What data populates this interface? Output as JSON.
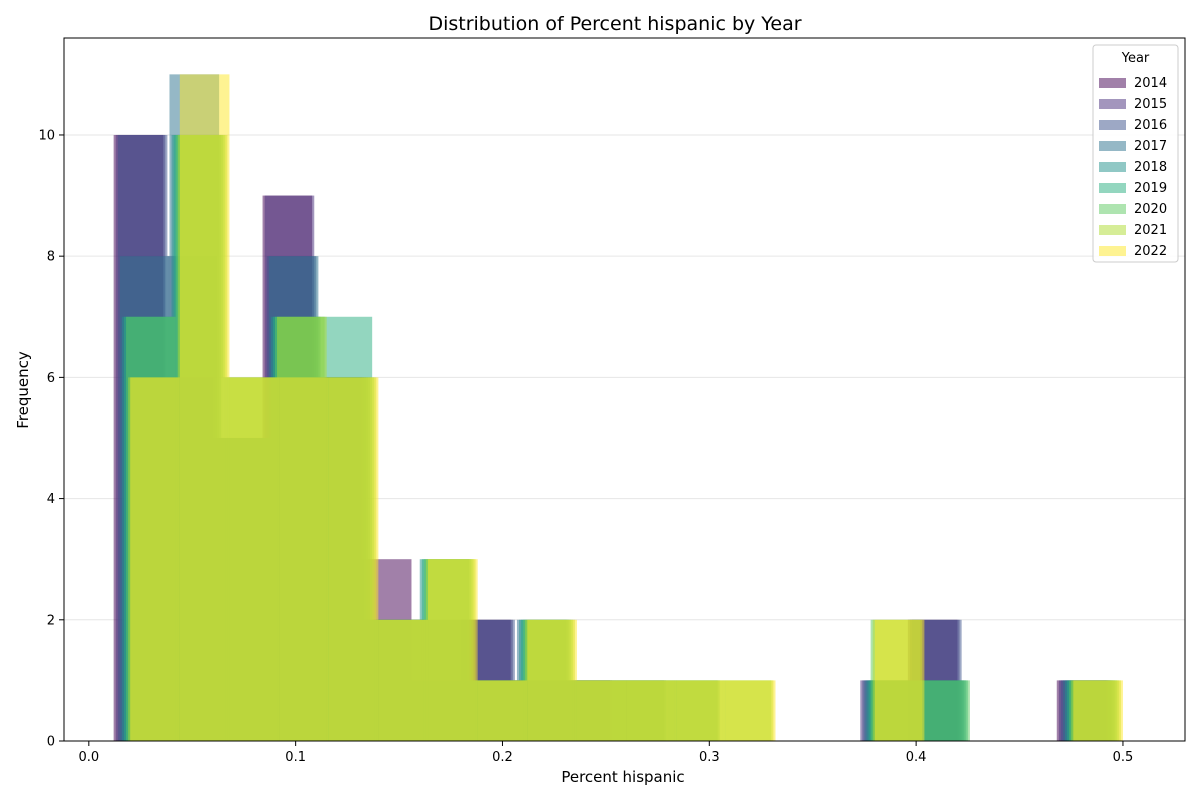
{
  "chart_data": {
    "type": "bar",
    "title": "Distribution of Percent hispanic by Year",
    "xlabel": "Percent hispanic",
    "ylabel": "Frequency",
    "xlim": [
      -0.012,
      0.53
    ],
    "ylim": [
      0,
      11.6
    ],
    "x_ticks": [
      0.0,
      0.1,
      0.2,
      0.3,
      0.4,
      0.5
    ],
    "x_tick_labels": [
      "0.0",
      "0.1",
      "0.2",
      "0.3",
      "0.4",
      "0.5"
    ],
    "y_ticks": [
      0,
      2,
      4,
      6,
      8,
      10
    ],
    "y_tick_labels": [
      "0",
      "2",
      "4",
      "6",
      "8",
      "10"
    ],
    "grid": "y",
    "bar_alpha": 0.5,
    "legend": {
      "title": "Year",
      "position": "top-right"
    },
    "series": [
      {
        "name": "2014",
        "color": "#440154",
        "bins": [
          [
            0.012,
            0.036,
            10
          ],
          [
            0.036,
            0.06,
            6
          ],
          [
            0.06,
            0.084,
            5
          ],
          [
            0.084,
            0.108,
            9
          ],
          [
            0.108,
            0.132,
            6
          ],
          [
            0.132,
            0.156,
            3
          ],
          [
            0.156,
            0.18,
            1
          ],
          [
            0.18,
            0.204,
            2
          ],
          [
            0.204,
            0.228,
            1
          ],
          [
            0.228,
            0.252,
            1
          ],
          [
            0.252,
            0.276,
            0
          ],
          [
            0.276,
            0.3,
            0
          ],
          [
            0.3,
            0.324,
            0
          ],
          [
            0.324,
            0.348,
            0
          ],
          [
            0.348,
            0.372,
            0
          ],
          [
            0.372,
            0.396,
            0
          ],
          [
            0.396,
            0.42,
            2
          ],
          [
            0.42,
            0.444,
            0
          ],
          [
            0.444,
            0.468,
            0
          ],
          [
            0.468,
            0.492,
            1
          ]
        ]
      },
      {
        "name": "2015",
        "color": "#472d7b",
        "bins": [
          [
            0.013,
            0.037,
            10
          ],
          [
            0.037,
            0.061,
            6
          ],
          [
            0.061,
            0.085,
            5
          ],
          [
            0.085,
            0.109,
            9
          ],
          [
            0.109,
            0.133,
            6
          ],
          [
            0.133,
            0.157,
            2
          ],
          [
            0.157,
            0.181,
            2
          ],
          [
            0.181,
            0.205,
            2
          ],
          [
            0.205,
            0.229,
            1
          ],
          [
            0.229,
            0.253,
            1
          ],
          [
            0.253,
            0.277,
            0
          ],
          [
            0.277,
            0.301,
            0
          ],
          [
            0.301,
            0.325,
            0
          ],
          [
            0.325,
            0.349,
            0
          ],
          [
            0.349,
            0.373,
            0
          ],
          [
            0.373,
            0.397,
            1
          ],
          [
            0.397,
            0.421,
            2
          ],
          [
            0.421,
            0.445,
            0
          ],
          [
            0.445,
            0.469,
            0
          ],
          [
            0.469,
            0.493,
            1
          ]
        ]
      },
      {
        "name": "2016",
        "color": "#3b528b",
        "bins": [
          [
            0.014,
            0.038,
            10
          ],
          [
            0.038,
            0.062,
            8
          ],
          [
            0.062,
            0.086,
            5
          ],
          [
            0.086,
            0.11,
            8
          ],
          [
            0.11,
            0.134,
            6
          ],
          [
            0.134,
            0.158,
            2
          ],
          [
            0.158,
            0.182,
            2
          ],
          [
            0.182,
            0.206,
            2
          ],
          [
            0.206,
            0.23,
            1
          ],
          [
            0.23,
            0.254,
            1
          ],
          [
            0.254,
            0.278,
            1
          ],
          [
            0.278,
            0.302,
            0
          ],
          [
            0.302,
            0.326,
            0
          ],
          [
            0.326,
            0.35,
            0
          ],
          [
            0.35,
            0.374,
            0
          ],
          [
            0.374,
            0.398,
            1
          ],
          [
            0.398,
            0.422,
            2
          ],
          [
            0.422,
            0.446,
            0
          ],
          [
            0.446,
            0.47,
            0
          ],
          [
            0.47,
            0.494,
            1
          ]
        ]
      },
      {
        "name": "2017",
        "color": "#2c728e",
        "bins": [
          [
            0.015,
            0.039,
            8
          ],
          [
            0.039,
            0.063,
            11
          ],
          [
            0.063,
            0.087,
            5
          ],
          [
            0.087,
            0.111,
            8
          ],
          [
            0.111,
            0.135,
            6
          ],
          [
            0.135,
            0.159,
            2
          ],
          [
            0.159,
            0.183,
            2
          ],
          [
            0.183,
            0.207,
            1
          ],
          [
            0.207,
            0.231,
            2
          ],
          [
            0.231,
            0.255,
            1
          ],
          [
            0.255,
            0.279,
            1
          ],
          [
            0.279,
            0.303,
            0
          ],
          [
            0.303,
            0.327,
            0
          ],
          [
            0.327,
            0.351,
            0
          ],
          [
            0.351,
            0.375,
            0
          ],
          [
            0.375,
            0.399,
            1
          ],
          [
            0.399,
            0.423,
            1
          ],
          [
            0.423,
            0.447,
            0
          ],
          [
            0.447,
            0.471,
            0
          ],
          [
            0.471,
            0.495,
            1
          ]
        ]
      },
      {
        "name": "2018",
        "color": "#21918c",
        "bins": [
          [
            0.016,
            0.04,
            7
          ],
          [
            0.04,
            0.064,
            10
          ],
          [
            0.064,
            0.088,
            5
          ],
          [
            0.088,
            0.112,
            7
          ],
          [
            0.112,
            0.136,
            6
          ],
          [
            0.136,
            0.16,
            2
          ],
          [
            0.16,
            0.184,
            3
          ],
          [
            0.184,
            0.208,
            1
          ],
          [
            0.208,
            0.232,
            2
          ],
          [
            0.232,
            0.256,
            1
          ],
          [
            0.256,
            0.28,
            1
          ],
          [
            0.28,
            0.304,
            1
          ],
          [
            0.304,
            0.328,
            0
          ],
          [
            0.328,
            0.352,
            0
          ],
          [
            0.352,
            0.376,
            0
          ],
          [
            0.376,
            0.4,
            1
          ],
          [
            0.4,
            0.424,
            1
          ],
          [
            0.424,
            0.448,
            0
          ],
          [
            0.448,
            0.472,
            0
          ],
          [
            0.472,
            0.496,
            1
          ]
        ]
      },
      {
        "name": "2019",
        "color": "#28ae80",
        "bins": [
          [
            0.017,
            0.041,
            7
          ],
          [
            0.041,
            0.065,
            10
          ],
          [
            0.065,
            0.089,
            6
          ],
          [
            0.089,
            0.113,
            7
          ],
          [
            0.113,
            0.137,
            7
          ],
          [
            0.137,
            0.161,
            2
          ],
          [
            0.161,
            0.185,
            3
          ],
          [
            0.185,
            0.209,
            1
          ],
          [
            0.209,
            0.233,
            2
          ],
          [
            0.233,
            0.257,
            1
          ],
          [
            0.257,
            0.281,
            1
          ],
          [
            0.281,
            0.305,
            1
          ],
          [
            0.305,
            0.329,
            0
          ],
          [
            0.329,
            0.353,
            0
          ],
          [
            0.353,
            0.377,
            0
          ],
          [
            0.377,
            0.401,
            1
          ],
          [
            0.401,
            0.425,
            1
          ],
          [
            0.425,
            0.449,
            0
          ],
          [
            0.449,
            0.473,
            0
          ],
          [
            0.473,
            0.497,
            1
          ]
        ]
      },
      {
        "name": "2020",
        "color": "#5ec962",
        "bins": [
          [
            0.018,
            0.042,
            7
          ],
          [
            0.042,
            0.066,
            10
          ],
          [
            0.066,
            0.09,
            6
          ],
          [
            0.09,
            0.114,
            7
          ],
          [
            0.114,
            0.138,
            6
          ],
          [
            0.138,
            0.162,
            2
          ],
          [
            0.162,
            0.186,
            3
          ],
          [
            0.186,
            0.21,
            1
          ],
          [
            0.21,
            0.234,
            2
          ],
          [
            0.234,
            0.258,
            1
          ],
          [
            0.258,
            0.282,
            1
          ],
          [
            0.282,
            0.306,
            1
          ],
          [
            0.306,
            0.33,
            1
          ],
          [
            0.33,
            0.354,
            0
          ],
          [
            0.354,
            0.378,
            0
          ],
          [
            0.378,
            0.402,
            2
          ],
          [
            0.402,
            0.426,
            1
          ],
          [
            0.426,
            0.45,
            0
          ],
          [
            0.45,
            0.474,
            0
          ],
          [
            0.474,
            0.498,
            1
          ]
        ]
      },
      {
        "name": "2021",
        "color": "#addc30",
        "bins": [
          [
            0.019,
            0.043,
            6
          ],
          [
            0.043,
            0.067,
            10
          ],
          [
            0.067,
            0.091,
            6
          ],
          [
            0.091,
            0.115,
            7
          ],
          [
            0.115,
            0.139,
            6
          ],
          [
            0.139,
            0.163,
            2
          ],
          [
            0.163,
            0.187,
            3
          ],
          [
            0.187,
            0.211,
            1
          ],
          [
            0.211,
            0.235,
            2
          ],
          [
            0.235,
            0.259,
            1
          ],
          [
            0.259,
            0.283,
            1
          ],
          [
            0.283,
            0.307,
            1
          ],
          [
            0.307,
            0.331,
            1
          ],
          [
            0.331,
            0.355,
            0
          ],
          [
            0.355,
            0.379,
            0
          ],
          [
            0.379,
            0.403,
            2
          ],
          [
            0.403,
            0.427,
            0
          ],
          [
            0.427,
            0.451,
            0
          ],
          [
            0.451,
            0.475,
            0
          ],
          [
            0.475,
            0.499,
            1
          ]
        ]
      },
      {
        "name": "2022",
        "color": "#fde725",
        "bins": [
          [
            0.02,
            0.044,
            6
          ],
          [
            0.044,
            0.068,
            11
          ],
          [
            0.068,
            0.092,
            6
          ],
          [
            0.092,
            0.116,
            6
          ],
          [
            0.116,
            0.14,
            6
          ],
          [
            0.14,
            0.164,
            2
          ],
          [
            0.164,
            0.188,
            3
          ],
          [
            0.188,
            0.212,
            1
          ],
          [
            0.212,
            0.236,
            2
          ],
          [
            0.236,
            0.26,
            1
          ],
          [
            0.26,
            0.284,
            1
          ],
          [
            0.284,
            0.308,
            1
          ],
          [
            0.308,
            0.332,
            1
          ],
          [
            0.332,
            0.356,
            0
          ],
          [
            0.356,
            0.38,
            0
          ],
          [
            0.38,
            0.404,
            2
          ],
          [
            0.404,
            0.428,
            0
          ],
          [
            0.428,
            0.452,
            0
          ],
          [
            0.452,
            0.476,
            0
          ],
          [
            0.476,
            0.5,
            1
          ]
        ]
      }
    ]
  }
}
